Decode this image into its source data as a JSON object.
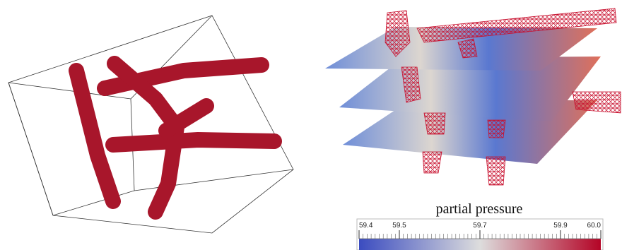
{
  "colorbar": {
    "title": "partial pressure",
    "lim": [
      59.4,
      60
    ],
    "ticks": [
      59.4,
      59.5,
      59.7,
      59.9,
      {
        "value": 60,
        "label": "60.0"
      }
    ],
    "colormap": [
      "#3b4cc0",
      "#dddddd",
      "#b40426"
    ]
  }
}
